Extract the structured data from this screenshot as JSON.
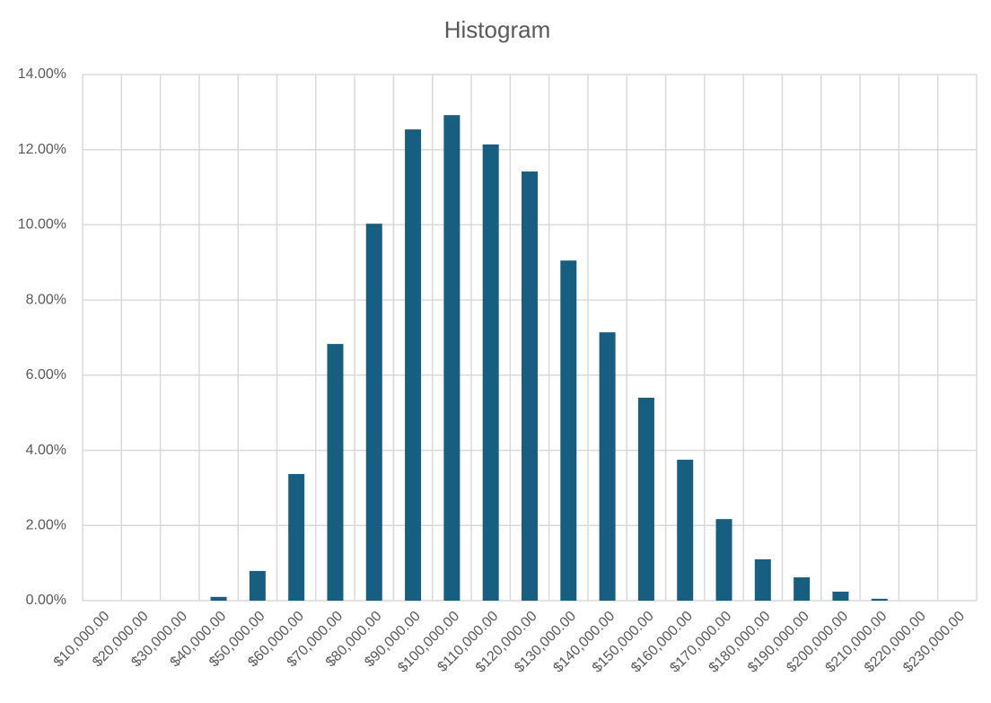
{
  "chart_data": {
    "type": "bar",
    "title": "Histogram",
    "categories": [
      "$10,000.00",
      "$20,000.00",
      "$30,000.00",
      "$40,000.00",
      "$50,000.00",
      "$60,000.00",
      "$70,000.00",
      "$80,000.00",
      "$90,000.00",
      "$100,000.00",
      "$110,000.00",
      "$120,000.00",
      "$130,000.00",
      "$140,000.00",
      "$150,000.00",
      "$160,000.00",
      "$170,000.00",
      "$180,000.00",
      "$190,000.00",
      "$200,000.00",
      "$210,000.00",
      "$220,000.00",
      "$230,000.00"
    ],
    "values": [
      0,
      0,
      0,
      0.1,
      0.79,
      3.37,
      6.83,
      10.03,
      12.54,
      12.92,
      12.14,
      11.42,
      9.05,
      7.14,
      5.4,
      3.75,
      2.17,
      1.1,
      0.62,
      0.24,
      0.05,
      0,
      0
    ],
    "color": "#175e80",
    "ylim": [
      0,
      14
    ],
    "yticks": [
      {
        "value": 0,
        "label": "0.00%"
      },
      {
        "value": 2,
        "label": "2.00%"
      },
      {
        "value": 4,
        "label": "4.00%"
      },
      {
        "value": 6,
        "label": "6.00%"
      },
      {
        "value": 8,
        "label": "8.00%"
      },
      {
        "value": 10,
        "label": "10.00%"
      },
      {
        "value": 12,
        "label": "12.00%"
      },
      {
        "value": 14,
        "label": "14.00%"
      }
    ],
    "grid": true
  }
}
